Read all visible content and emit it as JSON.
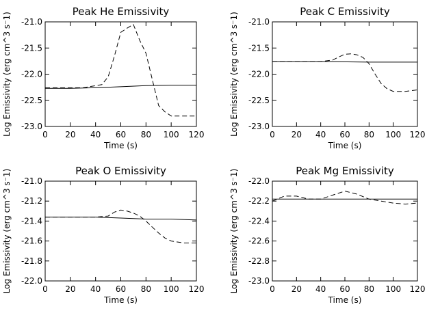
{
  "chart_data": [
    {
      "type": "line",
      "title": "Peak He Emissivity",
      "xlabel": "Time (s)",
      "ylabel": "Log Emissivity (erg cm^3 s⁻1)",
      "xlim": [
        0,
        120
      ],
      "ylim": [
        -23.0,
        -21.0
      ],
      "xticks": [
        0,
        20,
        40,
        60,
        80,
        100,
        120
      ],
      "yticks": [
        -21.0,
        -21.5,
        -22.0,
        -22.5,
        -23.0
      ],
      "ytick_labels": [
        "-21.0",
        "-21.5",
        "-22.0",
        "-22.5",
        "-23.0"
      ],
      "series": [
        {
          "style": "solid",
          "x": [
            0,
            20,
            40,
            60,
            80,
            100,
            120
          ],
          "y": [
            -22.27,
            -22.27,
            -22.26,
            -22.24,
            -22.22,
            -22.21,
            -22.21
          ]
        },
        {
          "style": "dashed",
          "x": [
            0,
            30,
            45,
            50,
            55,
            60,
            65,
            70,
            75,
            80,
            85,
            90,
            95,
            100,
            110,
            120
          ],
          "y": [
            -22.26,
            -22.26,
            -22.2,
            -22.05,
            -21.65,
            -21.2,
            -21.12,
            -21.05,
            -21.35,
            -21.6,
            -22.1,
            -22.6,
            -22.72,
            -22.8,
            -22.8,
            -22.8
          ]
        }
      ]
    },
    {
      "type": "line",
      "title": "Peak C Emissivity",
      "xlabel": "Time (s)",
      "ylabel": "Log Emissivity (erg cm^3 s⁻1)",
      "xlim": [
        0,
        120
      ],
      "ylim": [
        -23.0,
        -21.0
      ],
      "xticks": [
        0,
        20,
        40,
        60,
        80,
        100,
        120
      ],
      "yticks": [
        -21.0,
        -21.5,
        -22.0,
        -22.5,
        -23.0
      ],
      "ytick_labels": [
        "-21.0",
        "-21.5",
        "-22.0",
        "-22.5",
        "-23.0"
      ],
      "series": [
        {
          "style": "solid",
          "x": [
            0,
            40,
            80,
            120
          ],
          "y": [
            -21.76,
            -21.76,
            -21.77,
            -21.77
          ]
        },
        {
          "style": "dashed",
          "x": [
            0,
            40,
            50,
            55,
            60,
            65,
            70,
            75,
            80,
            85,
            90,
            95,
            100,
            110,
            120
          ],
          "y": [
            -21.76,
            -21.76,
            -21.73,
            -21.67,
            -21.62,
            -21.61,
            -21.63,
            -21.68,
            -21.8,
            -22.0,
            -22.18,
            -22.28,
            -22.33,
            -22.33,
            -22.3
          ]
        }
      ]
    },
    {
      "type": "line",
      "title": "Peak O Emissivity",
      "xlabel": "Time (s)",
      "ylabel": "Log Emissivity (erg cm^3 s⁻1)",
      "xlim": [
        0,
        120
      ],
      "ylim": [
        -22.0,
        -21.0
      ],
      "xticks": [
        0,
        20,
        40,
        60,
        80,
        100,
        120
      ],
      "yticks": [
        -21.0,
        -21.2,
        -21.4,
        -21.6,
        -21.8,
        -22.0
      ],
      "ytick_labels": [
        "-21.0",
        "-21.2",
        "-21.4",
        "-21.6",
        "-21.8",
        "-22.0"
      ],
      "series": [
        {
          "style": "solid",
          "x": [
            0,
            40,
            60,
            80,
            100,
            120
          ],
          "y": [
            -21.36,
            -21.36,
            -21.37,
            -21.38,
            -21.38,
            -21.39
          ]
        },
        {
          "style": "dashed",
          "x": [
            0,
            40,
            50,
            55,
            60,
            65,
            70,
            75,
            80,
            85,
            90,
            95,
            100,
            110,
            120
          ],
          "y": [
            -21.36,
            -21.36,
            -21.35,
            -21.31,
            -21.29,
            -21.3,
            -21.32,
            -21.35,
            -21.4,
            -21.46,
            -21.52,
            -21.57,
            -21.6,
            -21.62,
            -21.62
          ]
        }
      ]
    },
    {
      "type": "line",
      "title": "Peak Mg Emissivity",
      "xlabel": "Time (s)",
      "ylabel": "Log Emissivity (erg cm^3 s⁻1)",
      "xlim": [
        0,
        120
      ],
      "ylim": [
        -23.0,
        -22.0
      ],
      "xticks": [
        0,
        20,
        40,
        60,
        80,
        100,
        120
      ],
      "yticks": [
        -22.0,
        -22.2,
        -22.4,
        -22.6,
        -22.8,
        -23.0
      ],
      "ytick_labels": [
        "-22.0",
        "-22.2",
        "-22.4",
        "-22.6",
        "-22.8",
        "-23.0"
      ],
      "series": [
        {
          "style": "solid",
          "x": [
            0,
            120
          ],
          "y": [
            -22.18,
            -22.18
          ]
        },
        {
          "style": "dashed",
          "x": [
            0,
            10,
            20,
            30,
            40,
            50,
            60,
            70,
            80,
            90,
            100,
            110,
            120
          ],
          "y": [
            -22.2,
            -22.15,
            -22.15,
            -22.18,
            -22.18,
            -22.14,
            -22.1,
            -22.13,
            -22.18,
            -22.2,
            -22.22,
            -22.23,
            -22.22
          ]
        }
      ]
    }
  ]
}
